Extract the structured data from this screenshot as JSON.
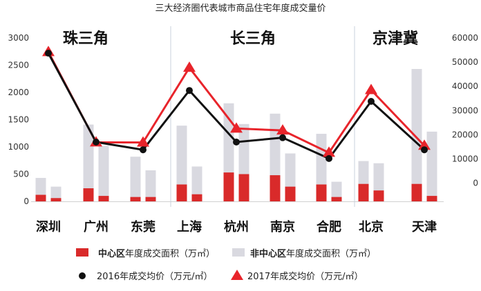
{
  "chart_data": {
    "type": "bar",
    "title": "三大经济圈代表城市商品住宅年度成交量价",
    "regions": [
      "珠三角",
      "长三角",
      "京津冀"
    ],
    "categories": [
      "深圳",
      "广州",
      "东莞",
      "上海",
      "杭州",
      "南京",
      "合肥",
      "北京",
      "天津"
    ],
    "y_left": {
      "ylim": [
        0,
        3000
      ],
      "ticks": [
        0,
        500,
        1000,
        1500,
        2000,
        2500,
        3000
      ]
    },
    "y_right": {
      "ylim": [
        -7500,
        60000
      ],
      "ticks": [
        0,
        10000,
        20000,
        30000,
        40000,
        50000,
        60000
      ]
    },
    "series": [
      {
        "name": "中心区年度成交面积（万㎡）",
        "legend_bold": "中心区",
        "legend_rest": "年度成交面积（万㎡）",
        "kind": "bar",
        "color": "#d92a2a",
        "pairs": [
          [
            120,
            60
          ],
          [
            240,
            100
          ],
          [
            80,
            80
          ],
          [
            310,
            130
          ],
          [
            530,
            500
          ],
          [
            480,
            270
          ],
          [
            310,
            80
          ],
          [
            320,
            200
          ],
          [
            320,
            100
          ]
        ]
      },
      {
        "name": "非中心区年度成交面积（万㎡）",
        "legend_bold": "非中心区",
        "legend_rest": "年度成交面积（万㎡）",
        "kind": "bar",
        "color": "#d9d9e0",
        "pairs": [
          [
            430,
            270
          ],
          [
            1410,
            1020
          ],
          [
            820,
            570
          ],
          [
            1390,
            640
          ],
          [
            1800,
            1420
          ],
          [
            1610,
            880
          ],
          [
            1240,
            360
          ],
          [
            740,
            700
          ],
          [
            2430,
            1280
          ]
        ]
      },
      {
        "name": "2016年成交均价（万元/㎡）",
        "kind": "line",
        "color": "#111111",
        "axis": "right",
        "values": [
          53700,
          17000,
          13800,
          38300,
          17000,
          18800,
          10200,
          33800,
          13800
        ]
      },
      {
        "name": "2017年成交均价（万元/㎡）",
        "kind": "line",
        "color": "#e8242b",
        "axis": "right",
        "values": [
          54200,
          16900,
          16800,
          47700,
          22600,
          21800,
          12600,
          38500,
          15500
        ]
      }
    ]
  }
}
